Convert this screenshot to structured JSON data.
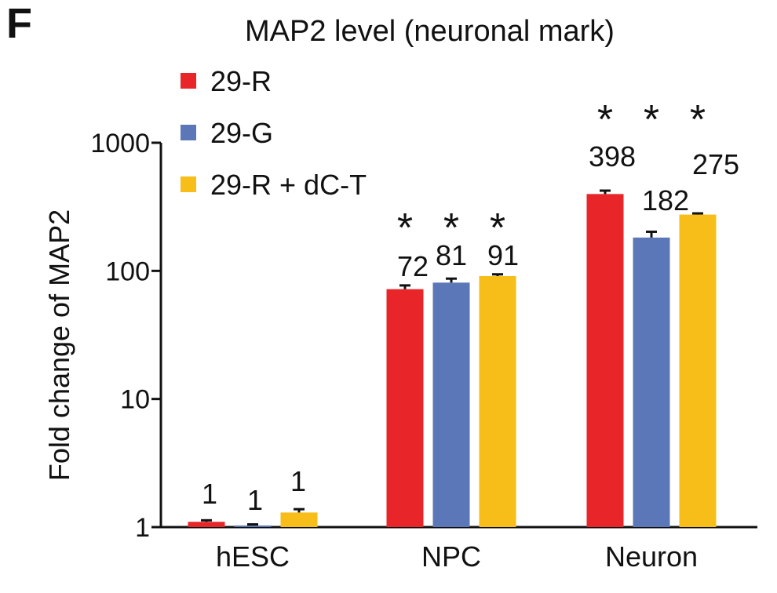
{
  "panel_label": "F",
  "chart_data": {
    "type": "bar",
    "title": "MAP2 level (neuronal mark)",
    "ylabel": "Fold change of MAP2",
    "xlabel": "",
    "yscale": "log",
    "ylim": [
      1,
      1000
    ],
    "yticks": [
      1,
      10,
      100,
      1000
    ],
    "ytick_labels": [
      "1",
      "10",
      "100",
      "1000"
    ],
    "categories": [
      "hESC",
      "NPC",
      "Neuron"
    ],
    "legend_position": "top-left",
    "series": [
      {
        "name": "29-R",
        "color": "#e8262a",
        "values": [
          1.1,
          72,
          398
        ],
        "errors": [
          0.03,
          5,
          25
        ],
        "labels": [
          "1",
          "72",
          "398"
        ]
      },
      {
        "name": "29-G",
        "color": "#5b77b8",
        "values": [
          1.03,
          81,
          182
        ],
        "errors": [
          0.02,
          6,
          20
        ],
        "labels": [
          "1",
          "81",
          "182"
        ]
      },
      {
        "name": "29-R + dC-T",
        "color": "#f7bd18",
        "values": [
          1.3,
          91,
          275
        ],
        "errors": [
          0.08,
          3,
          6
        ],
        "labels": [
          "1",
          "91",
          "275"
        ]
      }
    ],
    "significance": [
      "",
      "*",
      "*"
    ]
  }
}
